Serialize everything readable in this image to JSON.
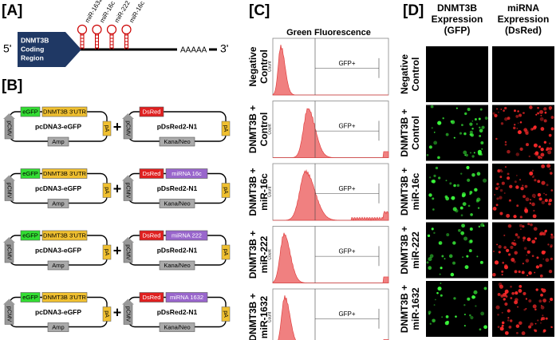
{
  "panel_a": {
    "label": "[A]",
    "five_prime": "5'",
    "coding_region": [
      "DNMT3B",
      "Coding",
      "Region"
    ],
    "mirnas": [
      "miR-1632",
      "miR-16c",
      "miR-222",
      "miR-16c"
    ],
    "poly_a": "AAAAA",
    "three_prime": "3'"
  },
  "panel_b": {
    "label": "[B]",
    "rows": [
      {
        "left": {
          "reporter": "eGFP",
          "utr": "DNMT3B 3'UTR",
          "promoter": "pCMV",
          "name": "pcDNA3-eGFP",
          "polya": "pA",
          "marker": "Amp"
        },
        "plus": "+",
        "right": {
          "reporter": "DsRed",
          "promoter": "pCMV",
          "name": "pDsRed2-N1",
          "polya": "pA",
          "marker": "Kana/Neo"
        }
      },
      {
        "left": {
          "reporter": "eGFP",
          "utr": "DNMT3B 3'UTR",
          "promoter": "pCMV",
          "name": "pcDNA3-eGFP",
          "polya": "pA",
          "marker": "Amp"
        },
        "plus": "+",
        "right": {
          "reporter": "DsRed",
          "insert": "miRNA 16c",
          "promoter": "pCMV",
          "name": "pDsRed2-N1",
          "polya": "pA",
          "marker": "Kana/Neo"
        }
      },
      {
        "left": {
          "reporter": "eGFP",
          "utr": "DNMT3B 3'UTR",
          "promoter": "pCMV",
          "name": "pcDNA3-eGFP",
          "polya": "pA",
          "marker": "Amp"
        },
        "plus": "+",
        "right": {
          "reporter": "DsRed",
          "insert": "miRNA 222",
          "promoter": "pCMV",
          "name": "pDsRed2-N1",
          "polya": "pA",
          "marker": "Kana/Neo"
        }
      },
      {
        "left": {
          "reporter": "eGFP",
          "utr": "DNMT3B 3'UTR",
          "promoter": "pCMV",
          "name": "pcDNA3-eGFP",
          "polya": "pA",
          "marker": "Amp"
        },
        "plus": "+",
        "right": {
          "reporter": "DsRed",
          "insert": "miRNA 1632",
          "promoter": "pCMV",
          "name": "pDsRed2-N1",
          "polya": "pA",
          "marker": "Kana/Neo"
        }
      }
    ]
  },
  "panel_c": {
    "label": "[C]",
    "title": "Green Fluorescence",
    "y_axis_label": "Count",
    "gate_label": "GFP+",
    "rows": [
      [
        "Negative",
        "Control"
      ],
      [
        "DNMT3B +",
        "Control"
      ],
      [
        "DNMT3B +",
        "miR-16c"
      ],
      [
        "DNMT3B +",
        "miR-222"
      ],
      [
        "DNMT3B +",
        "miR-1632"
      ]
    ]
  },
  "panel_d": {
    "label": "[D]",
    "headers": [
      [
        "DNMT3B",
        "Expression",
        "(GFP)"
      ],
      [
        "miRNA",
        "Expression",
        "(DsRed)"
      ]
    ],
    "rows": [
      [
        "Negative",
        "Control"
      ],
      [
        "DNMT3B +",
        "Control"
      ],
      [
        "DNMT3B +",
        "miR-16c"
      ],
      [
        "DNMT3B +",
        "miR-222"
      ],
      [
        "DNMT3B +",
        "miR-1632"
      ]
    ]
  }
}
